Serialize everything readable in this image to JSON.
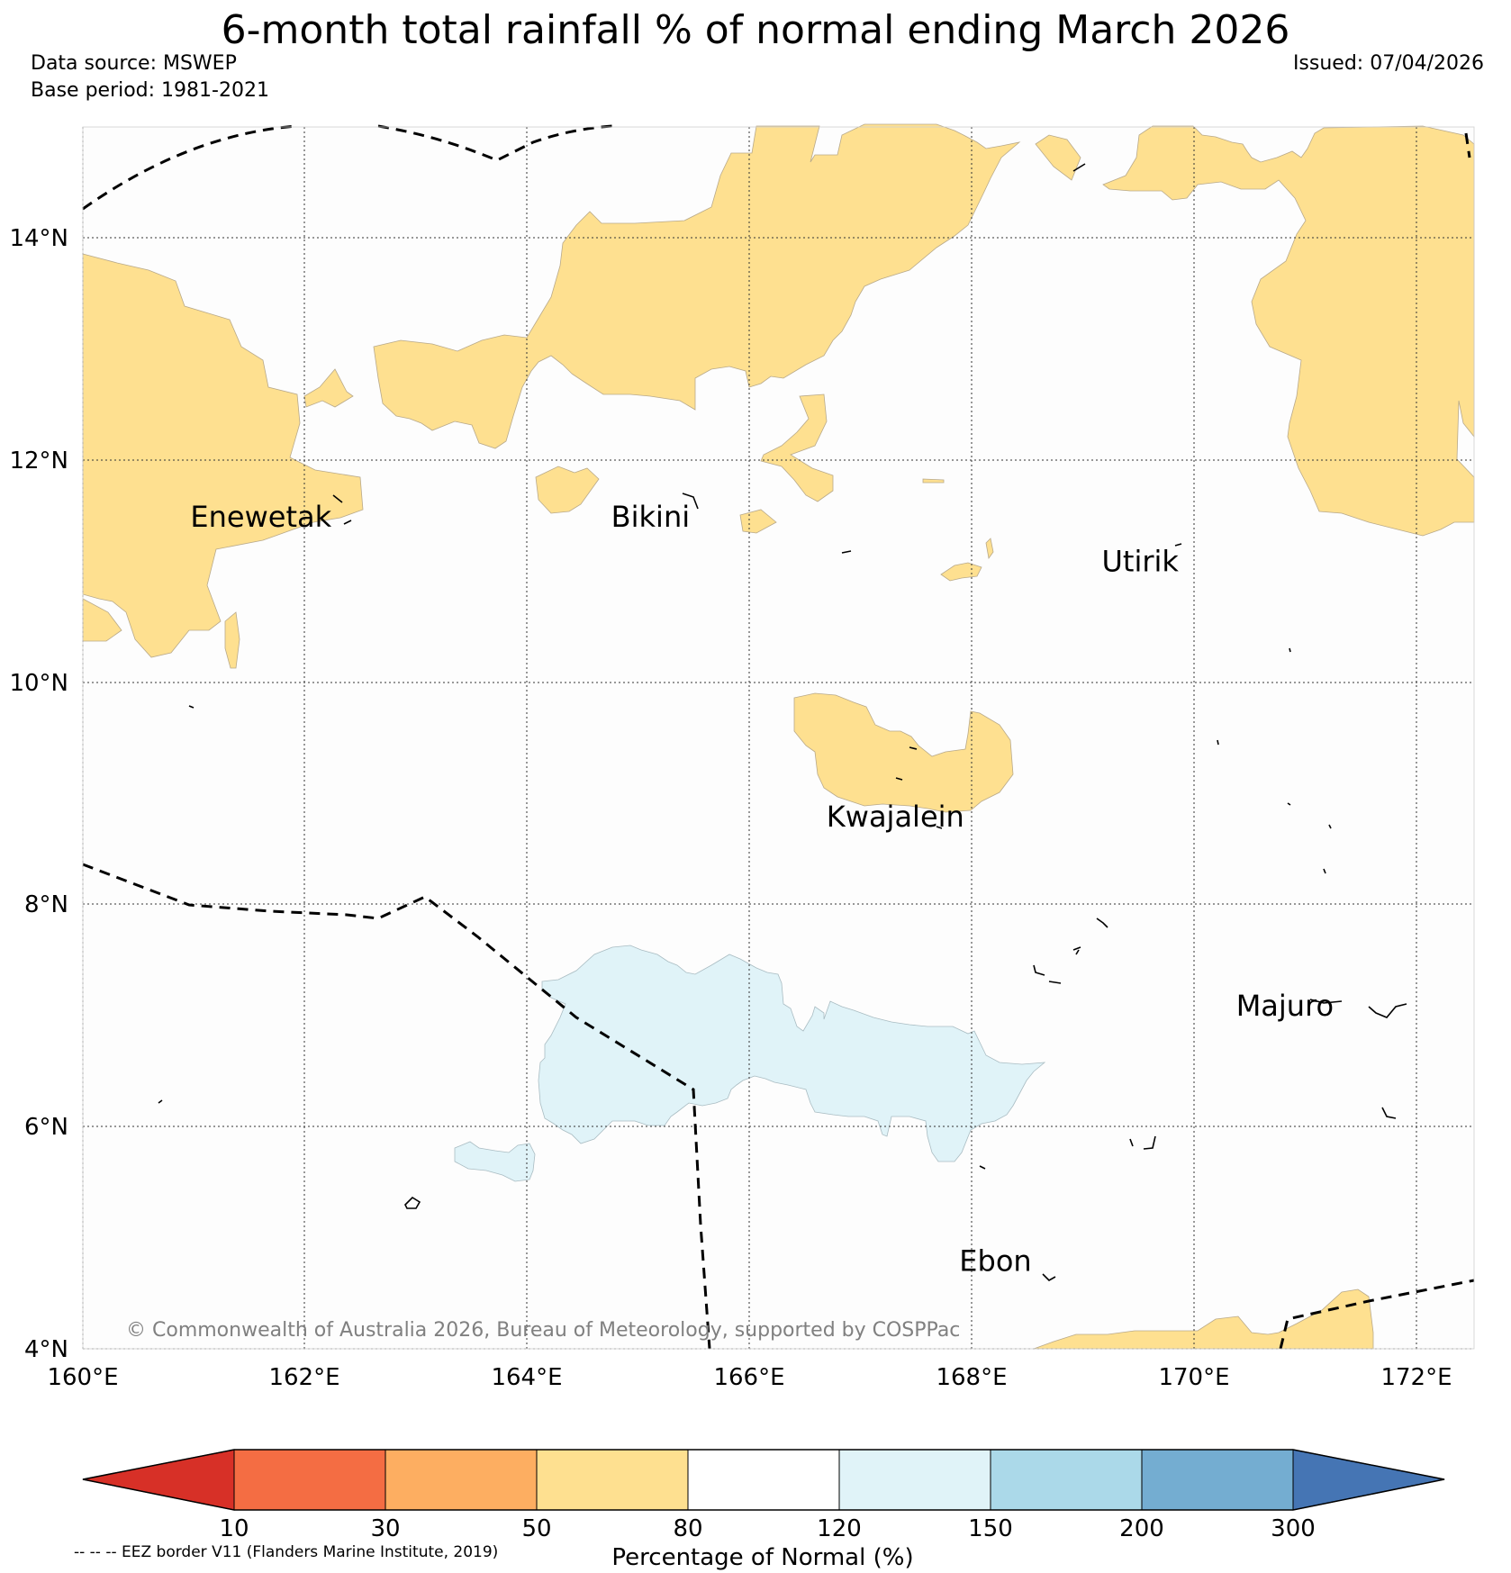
{
  "title": "6-month total rainfall % of normal ending March 2026",
  "data_source": "Data source: MSWEP",
  "base_period": "Base period: 1981-2021",
  "issued": "Issued: 07/04/2026",
  "copyright": "© Commonwealth of Australia 2026, Bureau of Meteorology, supported by COSPPac",
  "footnote": "-- -- -- EEZ border V11 (Flanders Marine Institute, 2019)",
  "map": {
    "lon_range": [
      160,
      172.5
    ],
    "lat_range": [
      4,
      15
    ],
    "lon_ticks": [
      "160°E",
      "162°E",
      "164°E",
      "166°E",
      "168°E",
      "170°E",
      "172°E"
    ],
    "lat_ticks": [
      "4°N",
      "6°N",
      "8°N",
      "10°N",
      "12°N",
      "14°N"
    ],
    "places": [
      {
        "name": "Enewetak",
        "lon": 161.6,
        "lat": 11.4
      },
      {
        "name": "Bikini",
        "lon": 165.1,
        "lat": 11.4
      },
      {
        "name": "Utirik",
        "lon": 169.5,
        "lat": 11.0
      },
      {
        "name": "Kwajalein",
        "lon": 167.3,
        "lat": 8.7
      },
      {
        "name": "Majuro",
        "lon": 170.8,
        "lat": 7.0
      },
      {
        "name": "Ebon",
        "lon": 168.2,
        "lat": 4.7
      }
    ]
  },
  "colorbar": {
    "title": "Percentage of Normal (%)",
    "ticks": [
      "10",
      "30",
      "50",
      "80",
      "120",
      "150",
      "200",
      "300"
    ],
    "colors": [
      "#d73027",
      "#f46d43",
      "#fdae61",
      "#fee090",
      "#ffffff",
      "#e0f3f8",
      "#abd9e9",
      "#74add1",
      "#4575b4"
    ]
  }
}
